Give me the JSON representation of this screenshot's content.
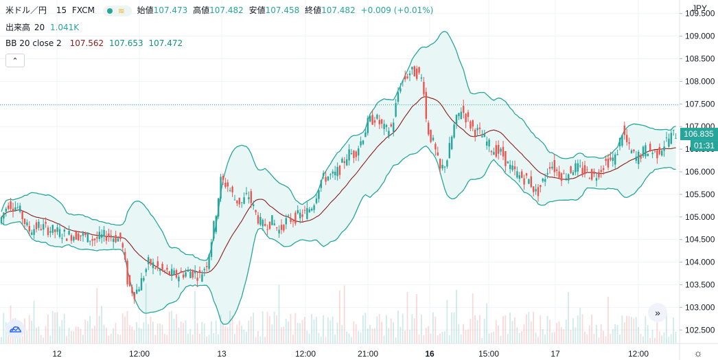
{
  "header": {
    "symbol": "米ドル／円",
    "interval": "15",
    "exchange": "FXCM",
    "open_label": "始値",
    "open": "107.473",
    "high_label": "高値",
    "high": "107.482",
    "low_label": "安値",
    "low": "107.458",
    "close_label": "終値",
    "close": "107.482",
    "change": "+0.009 (+0.01%)"
  },
  "volume_legend": {
    "label": "出来高",
    "period": "20",
    "value": "1.041K"
  },
  "bb_legend": {
    "label": "BB 20 close 2",
    "basis": "107.562",
    "upper": "107.653",
    "lower": "107.472"
  },
  "colors": {
    "up": "#26a69a",
    "down": "#ef5350",
    "band": "#26a69a",
    "basis": "#8b1a1a",
    "fill": "#e6f6f4",
    "accent": "#2962ff"
  },
  "icons": {
    "collapse": "chevron-up-icon",
    "scroll": "double-chevron-right-icon",
    "settings": "gear-icon",
    "logo": "tradingview-logo-icon"
  },
  "ui": {
    "collapse_glyph": "⌃",
    "scroll_glyph": "»",
    "settings_glyph": "☼"
  },
  "chart_data": {
    "type": "candlestick",
    "currency": "JPY",
    "ylim": [
      102.2,
      109.8
    ],
    "y_ticks": [
      "102.500",
      "103.000",
      "103.500",
      "104.000",
      "104.500",
      "105.000",
      "105.500",
      "106.000",
      "106.500",
      "107.000",
      "107.500",
      "108.000",
      "108.500",
      "109.000",
      "109.500"
    ],
    "x_labels": [
      "12",
      "12:00",
      "13",
      "12:00",
      "21:00",
      "16",
      "15:00",
      "17",
      "12:00"
    ],
    "x_label_bold": [
      false,
      false,
      false,
      false,
      false,
      true,
      false,
      false,
      false
    ],
    "last_price": "106.835",
    "countdown": "01:31",
    "reference_level": 107.48,
    "price_path": [
      [
        0,
        104.8
      ],
      [
        15,
        105.3
      ],
      [
        30,
        105.2
      ],
      [
        45,
        104.7
      ],
      [
        60,
        104.8
      ],
      [
        80,
        104.7
      ],
      [
        100,
        104.6
      ],
      [
        120,
        104.6
      ],
      [
        140,
        104.5
      ],
      [
        160,
        104.6
      ],
      [
        180,
        104.5
      ],
      [
        190,
        103.5
      ],
      [
        200,
        103.3
      ],
      [
        210,
        103.6
      ],
      [
        220,
        104.0
      ],
      [
        240,
        103.8
      ],
      [
        260,
        103.7
      ],
      [
        280,
        103.8
      ],
      [
        295,
        103.7
      ],
      [
        305,
        104.0
      ],
      [
        315,
        104.8
      ],
      [
        325,
        105.8
      ],
      [
        335,
        105.7
      ],
      [
        345,
        105.4
      ],
      [
        355,
        105.3
      ],
      [
        365,
        105.5
      ],
      [
        375,
        105.1
      ],
      [
        385,
        104.8
      ],
      [
        400,
        104.9
      ],
      [
        410,
        104.7
      ],
      [
        420,
        104.9
      ],
      [
        435,
        105.0
      ],
      [
        450,
        105.1
      ],
      [
        460,
        105.3
      ],
      [
        470,
        105.8
      ],
      [
        480,
        105.9
      ],
      [
        490,
        105.9
      ],
      [
        500,
        106.1
      ],
      [
        510,
        106.4
      ],
      [
        520,
        106.4
      ],
      [
        530,
        106.7
      ],
      [
        540,
        107.1
      ],
      [
        550,
        107.2
      ],
      [
        565,
        106.9
      ],
      [
        575,
        107.0
      ],
      [
        585,
        107.9
      ],
      [
        600,
        108.2
      ],
      [
        610,
        108.2
      ],
      [
        620,
        108.0
      ],
      [
        625,
        107.0
      ],
      [
        635,
        106.6
      ],
      [
        645,
        106.0
      ],
      [
        655,
        106.3
      ],
      [
        665,
        107.0
      ],
      [
        675,
        107.4
      ],
      [
        690,
        107.0
      ],
      [
        705,
        106.8
      ],
      [
        720,
        106.5
      ],
      [
        735,
        106.4
      ],
      [
        745,
        106.1
      ],
      [
        760,
        105.9
      ],
      [
        775,
        105.8
      ],
      [
        785,
        105.5
      ],
      [
        795,
        105.8
      ],
      [
        805,
        106.2
      ],
      [
        815,
        106.0
      ],
      [
        825,
        105.9
      ],
      [
        840,
        106.1
      ],
      [
        855,
        106.0
      ],
      [
        870,
        105.9
      ],
      [
        885,
        106.2
      ],
      [
        900,
        106.3
      ],
      [
        910,
        106.9
      ],
      [
        920,
        106.5
      ],
      [
        930,
        106.3
      ],
      [
        945,
        106.5
      ],
      [
        960,
        106.4
      ],
      [
        975,
        106.7
      ],
      [
        985,
        106.835
      ]
    ]
  }
}
